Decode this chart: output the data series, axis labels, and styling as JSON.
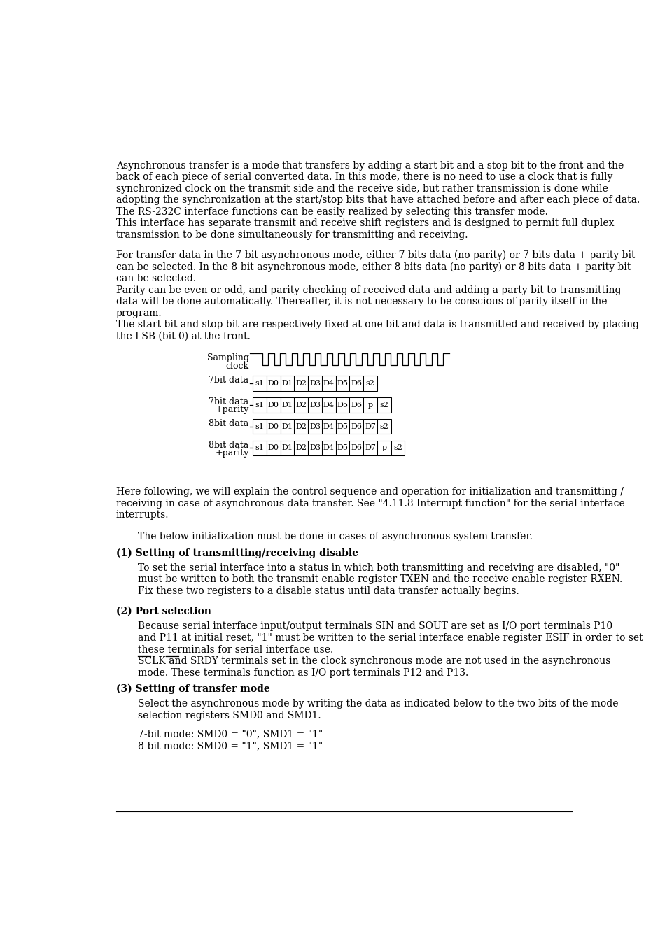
{
  "background_color": "#ffffff",
  "text_color": "#000000",
  "page_width": 9.54,
  "page_height": 13.48,
  "font_size_body": 10.0,
  "font_size_heading": 10.5,
  "para1_lines": [
    "Asynchronous transfer is a mode that transfers by adding a start bit and a stop bit to the front and the",
    "back of each piece of serial converted data. In this mode, there is no need to use a clock that is fully",
    "synchronized clock on the transmit side and the receive side, but rather transmission is done while",
    "adopting the synchronization at the start/stop bits that have attached before and after each piece of data.",
    "The RS-232C interface functions can be easily realized by selecting this transfer mode.",
    "This interface has separate transmit and receive shift registers and is designed to permit full duplex",
    "transmission to be done simultaneously for transmitting and receiving."
  ],
  "para2_lines": [
    "For transfer data in the 7-bit asynchronous mode, either 7 bits data (no parity) or 7 bits data + parity bit",
    "can be selected. In the 8-bit asynchronous mode, either 8 bits data (no parity) or 8 bits data + parity bit",
    "can be selected.",
    "Parity can be even or odd, and parity checking of received data and adding a party bit to transmitting",
    "data will be done automatically. Thereafter, it is not necessary to be conscious of parity itself in the",
    "program.",
    "The start bit and stop bit are respectively fixed at one bit and data is transmitted and received by placing",
    "the LSB (bit 0) at the front."
  ],
  "para3_lines": [
    "Here following, we will explain the control sequence and operation for initialization and transmitting /",
    "receiving in case of asynchronous data transfer. See \"4.11.8 Interrupt function\" for the serial interface",
    "interrupts."
  ],
  "para4": "The below initialization must be done in cases of asynchronous system transfer.",
  "section1_title": "(1) Setting of transmitting/receiving disable",
  "section1_lines": [
    "To set the serial interface into a status in which both transmitting and receiving are disabled, \"0\"",
    "must be written to both the transmit enable register TXEN and the receive enable register RXEN.",
    "Fix these two registers to a disable status until data transfer actually begins."
  ],
  "section2_title": "(2) Port selection",
  "section2_lines": [
    "Because serial interface input/output terminals SIN and SOUT are set as I/O port terminals P10",
    "and P11 at initial reset, \"1\" must be written to the serial interface enable register ESIF in order to set",
    "these terminals for serial interface use."
  ],
  "section2_sclk": "SCLK and SRDY terminals set in the clock synchronous mode are not used in the asynchronous",
  "section2_sclk2": "mode. These terminals function as I/O port terminals P12 and P13.",
  "section3_title": "(3) Setting of transfer mode",
  "section3_lines": [
    "Select the asynchronous mode by writing the data as indicated below to the two bits of the mode",
    "selection registers SMD0 and SMD1."
  ],
  "section3_extra1": "7-bit mode: SMD0 = \"0\", SMD1 = \"1\"",
  "section3_extra2": "8-bit mode: SMD0 = \"1\", SMD1 = \"1\""
}
